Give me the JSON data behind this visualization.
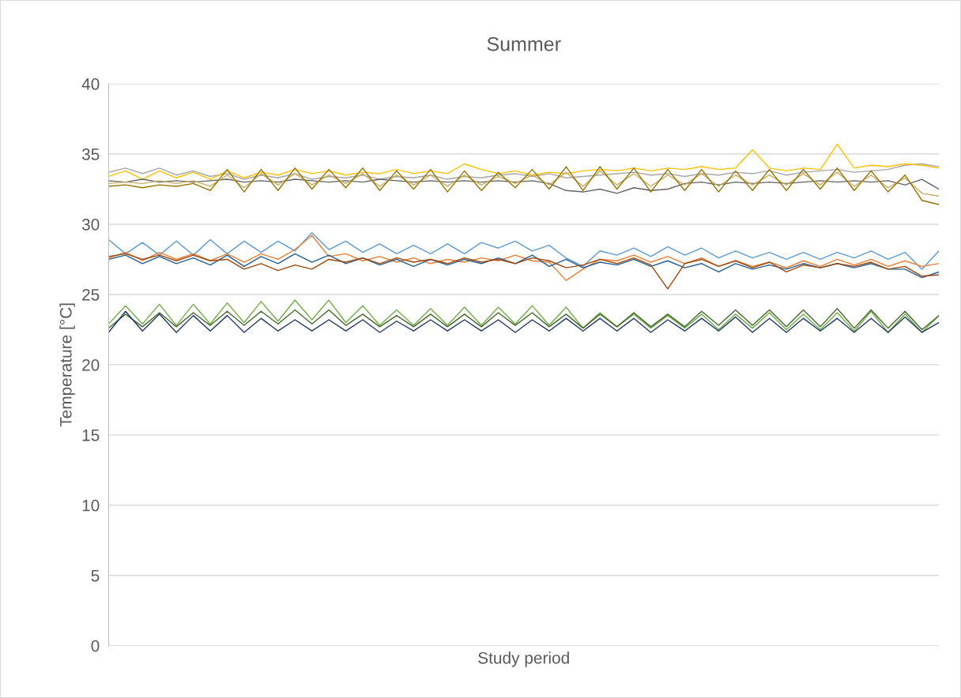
{
  "chart_data": {
    "type": "line",
    "title": "Summer",
    "xlabel": "Study period",
    "ylabel": "Temperature [°C]",
    "categories": [
      null,
      null,
      null,
      null,
      null,
      null,
      null,
      null,
      null,
      null,
      null,
      null,
      null,
      null,
      null,
      null,
      null,
      null,
      null,
      null,
      null,
      null,
      null,
      null,
      null,
      null,
      null,
      null,
      null,
      null,
      null,
      null,
      null,
      null,
      null,
      null,
      null,
      null,
      null,
      null,
      null,
      null,
      null,
      null,
      null,
      null,
      null,
      null,
      null,
      null
    ],
    "ylim": [
      0,
      40
    ],
    "yticks": [
      0,
      5,
      10,
      15,
      20,
      25,
      30,
      35,
      40
    ],
    "grid": "y",
    "marker": "none",
    "line_style": "solid",
    "series": [
      {
        "color": "#a5a5a5",
        "values": [
          33.7,
          34.0,
          33.6,
          34.0,
          33.5,
          33.8,
          33.4,
          33.6,
          33.2,
          33.5,
          33.3,
          33.6,
          33.2,
          33.4,
          33.3,
          33.5,
          33.2,
          33.4,
          33.3,
          33.5,
          33.2,
          33.4,
          33.3,
          33.5,
          33.6,
          33.4,
          33.6,
          33.3,
          33.4,
          33.5,
          33.6,
          33.7,
          33.5,
          33.6,
          33.4,
          33.6,
          33.5,
          33.7,
          33.6,
          33.8,
          33.5,
          33.7,
          33.8,
          33.9,
          33.7,
          33.8,
          33.9,
          34.2,
          34.3,
          34.1
        ]
      },
      {
        "color": "#ffc000",
        "values": [
          33.4,
          33.8,
          33.2,
          33.8,
          33.3,
          33.7,
          33.2,
          33.8,
          33.3,
          33.7,
          33.5,
          33.9,
          33.6,
          33.8,
          33.5,
          33.7,
          33.6,
          33.9,
          33.6,
          33.8,
          33.6,
          34.3,
          33.9,
          33.6,
          33.8,
          33.5,
          33.7,
          33.6,
          33.8,
          33.9,
          33.8,
          34.0,
          33.8,
          34.0,
          33.9,
          34.1,
          33.9,
          34.0,
          35.3,
          34.0,
          33.8,
          34.0,
          33.9,
          35.7,
          34.0,
          34.2,
          34.1,
          34.3,
          34.2,
          34.0
        ]
      },
      {
        "color": "#636363",
        "values": [
          33.1,
          33.0,
          33.2,
          33.0,
          33.1,
          33.0,
          33.1,
          33.2,
          33.0,
          33.1,
          33.0,
          33.2,
          33.1,
          33.0,
          33.1,
          33.0,
          33.2,
          33.1,
          33.0,
          33.1,
          33.0,
          33.1,
          33.0,
          33.1,
          33.0,
          33.1,
          32.9,
          32.4,
          32.3,
          32.5,
          32.2,
          32.6,
          32.4,
          32.5,
          32.9,
          33.0,
          32.8,
          33.0,
          32.9,
          33.0,
          32.9,
          33.0,
          33.1,
          33.0,
          33.1,
          33.0,
          33.1,
          32.8,
          33.2,
          32.5
        ]
      },
      {
        "color": "#c9ad62",
        "values": [
          32.9,
          33.0,
          32.9,
          33.1,
          32.9,
          33.1,
          32.7,
          33.5,
          32.6,
          33.6,
          32.8,
          33.6,
          32.8,
          33.5,
          32.9,
          33.6,
          32.7,
          33.5,
          32.8,
          33.5,
          32.7,
          33.5,
          32.8,
          33.4,
          32.9,
          33.5,
          32.8,
          33.7,
          32.7,
          33.8,
          32.8,
          33.6,
          32.7,
          33.5,
          32.8,
          33.6,
          32.7,
          33.5,
          32.8,
          33.5,
          32.8,
          33.6,
          32.8,
          33.7,
          32.7,
          33.5,
          32.6,
          33.3,
          32.2,
          32.0
        ]
      },
      {
        "color": "#997300",
        "values": [
          32.7,
          32.8,
          32.6,
          32.8,
          32.7,
          32.9,
          32.4,
          33.9,
          32.3,
          33.9,
          32.4,
          34.0,
          32.5,
          33.9,
          32.6,
          34.0,
          32.4,
          33.8,
          32.5,
          33.9,
          32.3,
          33.8,
          32.4,
          33.7,
          32.6,
          33.9,
          32.5,
          34.1,
          32.4,
          34.1,
          32.5,
          34.0,
          32.3,
          33.9,
          32.4,
          33.9,
          32.3,
          33.8,
          32.4,
          33.9,
          32.4,
          33.9,
          32.5,
          34.0,
          32.4,
          33.8,
          32.3,
          33.5,
          31.7,
          31.4
        ]
      },
      {
        "color": "#5b9bd5",
        "values": [
          28.9,
          27.9,
          28.7,
          27.8,
          28.8,
          27.8,
          28.9,
          27.9,
          28.8,
          28.0,
          28.8,
          28.1,
          29.4,
          28.2,
          28.8,
          28.0,
          28.6,
          27.9,
          28.5,
          27.9,
          28.6,
          27.9,
          28.7,
          28.3,
          28.8,
          28.1,
          28.5,
          27.6,
          27.0,
          28.1,
          27.8,
          28.3,
          27.7,
          28.4,
          27.8,
          28.3,
          27.6,
          28.1,
          27.6,
          28.0,
          27.5,
          28.0,
          27.5,
          28.0,
          27.6,
          28.1,
          27.5,
          28.0,
          26.8,
          28.1
        ]
      },
      {
        "color": "#ed7d31",
        "values": [
          27.6,
          28.0,
          27.4,
          28.0,
          27.5,
          27.9,
          27.4,
          27.9,
          27.3,
          27.9,
          27.5,
          28.2,
          29.2,
          27.7,
          27.9,
          27.4,
          27.7,
          27.3,
          27.6,
          27.2,
          27.5,
          27.3,
          27.6,
          27.4,
          27.8,
          27.4,
          27.3,
          26.0,
          26.8,
          27.5,
          27.4,
          27.8,
          27.3,
          27.7,
          27.2,
          27.6,
          27.0,
          27.4,
          27.0,
          27.3,
          26.9,
          27.4,
          27.0,
          27.5,
          27.1,
          27.5,
          27.0,
          27.4,
          27.0,
          27.2
        ]
      },
      {
        "color": "#255e91",
        "values": [
          27.5,
          27.8,
          27.2,
          27.7,
          27.2,
          27.6,
          27.1,
          27.8,
          27.0,
          27.7,
          27.2,
          27.9,
          27.3,
          27.8,
          27.2,
          27.6,
          27.1,
          27.5,
          27.0,
          27.5,
          27.1,
          27.5,
          27.2,
          27.6,
          27.2,
          27.8,
          27.0,
          27.5,
          26.9,
          27.3,
          27.1,
          27.5,
          27.0,
          27.4,
          26.9,
          27.2,
          26.6,
          27.2,
          26.8,
          27.1,
          26.8,
          27.2,
          26.9,
          27.2,
          26.9,
          27.2,
          26.8,
          26.8,
          26.2,
          26.6
        ]
      },
      {
        "color": "#9e480e",
        "values": [
          27.7,
          27.9,
          27.5,
          27.8,
          27.4,
          27.8,
          27.4,
          27.5,
          26.8,
          27.2,
          26.7,
          27.1,
          26.8,
          27.5,
          27.3,
          27.6,
          27.2,
          27.6,
          27.3,
          27.5,
          27.2,
          27.6,
          27.3,
          27.5,
          27.2,
          27.6,
          27.4,
          26.9,
          27.1,
          27.5,
          27.2,
          27.6,
          27.1,
          25.4,
          27.2,
          27.5,
          27.0,
          27.4,
          26.9,
          27.3,
          26.6,
          27.1,
          26.9,
          27.2,
          27.0,
          27.3,
          26.8,
          27.0,
          26.3,
          26.4
        ]
      },
      {
        "color": "#70ad47",
        "values": [
          22.9,
          24.2,
          22.9,
          24.3,
          22.8,
          24.3,
          22.9,
          24.4,
          23.0,
          24.5,
          23.1,
          24.6,
          23.2,
          24.6,
          23.0,
          24.2,
          22.8,
          23.9,
          22.8,
          24.0,
          22.8,
          24.1,
          22.8,
          24.1,
          22.9,
          24.2,
          22.8,
          24.1,
          22.6,
          23.7,
          22.7,
          23.6,
          22.6,
          23.5,
          22.6,
          23.6,
          22.5,
          23.6,
          22.6,
          23.7,
          22.5,
          23.6,
          22.5,
          23.7,
          22.4,
          23.8,
          22.3,
          23.6,
          22.3,
          23.5
        ]
      },
      {
        "color": "#43682b",
        "values": [
          22.6,
          23.6,
          22.7,
          23.7,
          22.7,
          23.7,
          22.8,
          23.8,
          22.8,
          23.8,
          22.9,
          23.9,
          22.9,
          23.9,
          22.8,
          23.6,
          22.7,
          23.5,
          22.7,
          23.6,
          22.7,
          23.6,
          22.7,
          23.7,
          22.8,
          23.7,
          22.7,
          23.6,
          22.6,
          23.6,
          22.7,
          23.7,
          22.7,
          23.6,
          22.7,
          23.8,
          22.8,
          23.9,
          22.8,
          23.9,
          22.7,
          23.9,
          22.7,
          24.0,
          22.6,
          23.9,
          22.6,
          23.8,
          22.5,
          23.5
        ]
      },
      {
        "color": "#1f3864",
        "values": [
          22.3,
          23.8,
          22.4,
          23.6,
          22.3,
          23.5,
          22.4,
          23.5,
          22.3,
          23.3,
          22.4,
          23.2,
          22.4,
          23.2,
          22.4,
          23.2,
          22.3,
          23.1,
          22.4,
          23.2,
          22.4,
          23.2,
          22.4,
          23.2,
          22.3,
          23.2,
          22.4,
          23.3,
          22.4,
          23.3,
          22.4,
          23.3,
          22.3,
          23.2,
          22.4,
          23.3,
          22.4,
          23.4,
          22.3,
          23.3,
          22.3,
          23.3,
          22.4,
          23.3,
          22.3,
          23.3,
          22.3,
          23.4,
          22.3,
          23.0
        ]
      }
    ]
  }
}
